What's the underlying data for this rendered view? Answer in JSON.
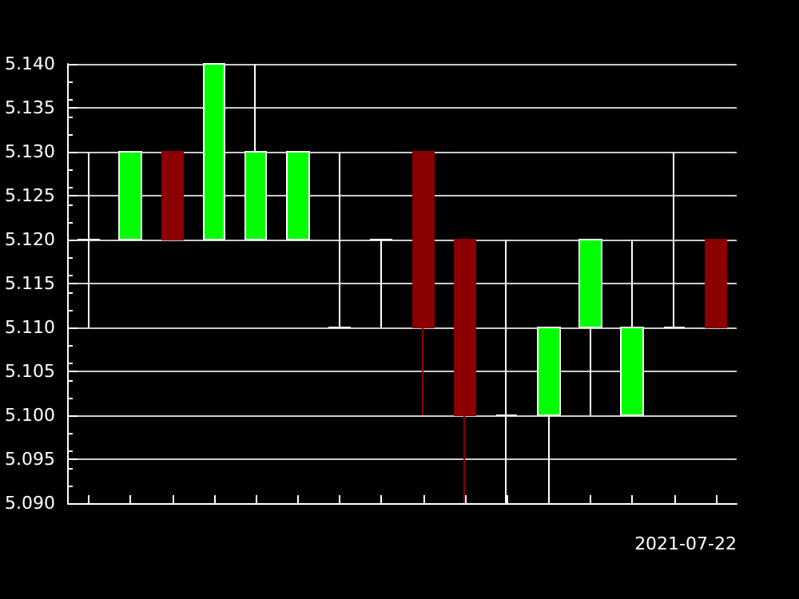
{
  "chart_data": {
    "type": "candlestick",
    "xlabel": "2021-07-22",
    "categories": [
      null,
      null,
      null,
      null,
      null,
      null,
      null,
      null,
      null,
      null,
      null,
      null,
      null,
      null,
      null,
      null
    ],
    "ohlc": [
      [
        5.12,
        5.13,
        5.11,
        5.12
      ],
      [
        5.12,
        5.13,
        5.12,
        5.13
      ],
      [
        5.13,
        5.13,
        5.12,
        5.12
      ],
      [
        5.12,
        5.14,
        5.12,
        5.14
      ],
      [
        5.12,
        5.14,
        5.12,
        5.13
      ],
      [
        5.12,
        5.13,
        5.12,
        5.13
      ],
      [
        5.11,
        5.13,
        5.11,
        5.11
      ],
      [
        5.12,
        5.12,
        5.11,
        5.12
      ],
      [
        5.13,
        5.13,
        5.1,
        5.11
      ],
      [
        5.12,
        5.12,
        5.09,
        5.1
      ],
      [
        5.1,
        5.12,
        5.09,
        5.1
      ],
      [
        5.1,
        5.11,
        5.09,
        5.11
      ],
      [
        5.11,
        5.12,
        5.1,
        5.12
      ],
      [
        5.1,
        5.12,
        5.1,
        5.11
      ],
      [
        5.11,
        5.13,
        5.11,
        5.11
      ],
      [
        5.12,
        5.12,
        5.11,
        5.11
      ]
    ],
    "colors": [
      "#ffffff",
      "#00ff00",
      "#8b0000",
      "#00ff00",
      "#00ff00",
      "#00ff00",
      "#ffffff",
      "#ffffff",
      "#8b0000",
      "#8b0000",
      "#ffffff",
      "#00ff00",
      "#00ff00",
      "#00ff00",
      "#ffffff",
      "#8b0000"
    ],
    "ylim": [
      5.09,
      5.14
    ],
    "yticks": [
      {
        "value": 5.09,
        "label": "5.090"
      },
      {
        "value": 5.095,
        "label": "5.095"
      },
      {
        "value": 5.1,
        "label": "5.100"
      },
      {
        "value": 5.105,
        "label": "5.105"
      },
      {
        "value": 5.11,
        "label": "5.110"
      },
      {
        "value": 5.115,
        "label": "5.115"
      },
      {
        "value": 5.12,
        "label": "5.120"
      },
      {
        "value": 5.125,
        "label": "5.125"
      },
      {
        "value": 5.13,
        "label": "5.130"
      },
      {
        "value": 5.135,
        "label": "5.135"
      },
      {
        "value": 5.14,
        "label": "5.140"
      }
    ],
    "grid": "y"
  }
}
